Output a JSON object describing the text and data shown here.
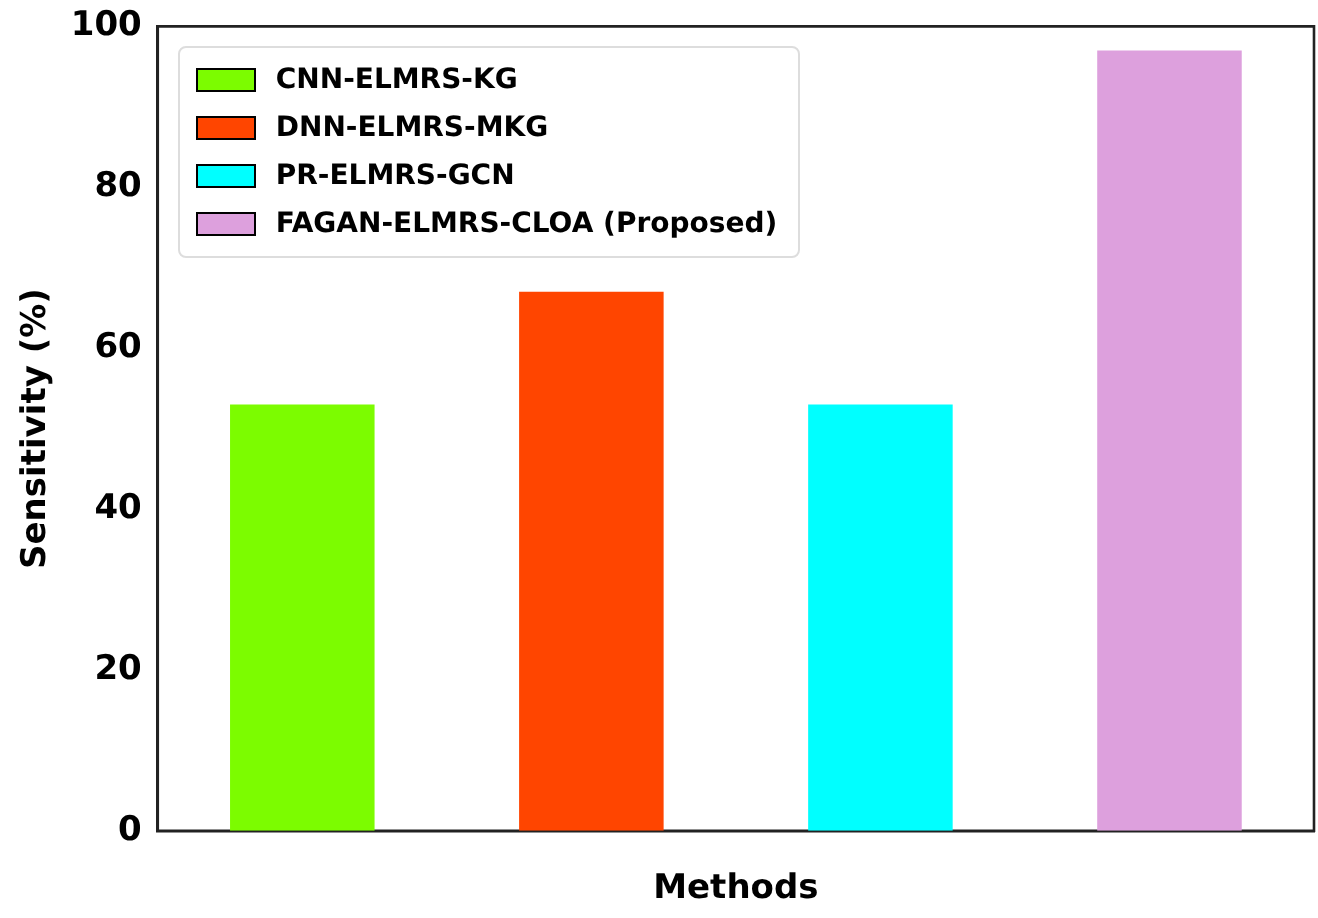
{
  "chart_data": {
    "type": "bar",
    "xlabel": "Methods",
    "ylabel": "Sensitivity (%)",
    "categories": [
      null,
      null,
      null,
      null
    ],
    "series": [
      {
        "name": "CNN-ELMRS-KG",
        "color": "#7cfc00",
        "values": [
          53,
          null,
          null,
          null
        ]
      },
      {
        "name": "DNN-ELMRS-MKG",
        "color": "#ff4500",
        "values": [
          null,
          67,
          null,
          null
        ]
      },
      {
        "name": "PR-ELMRS-GCN",
        "color": "#00ffff",
        "values": [
          null,
          null,
          53,
          null
        ]
      },
      {
        "name": "FAGAN-ELMRS-CLOA (Proposed)",
        "color": "#dda0dd",
        "values": [
          null,
          null,
          null,
          97
        ]
      }
    ],
    "ylim": [
      0,
      100
    ],
    "yticks": [
      0,
      20,
      40,
      60,
      80,
      100
    ],
    "grid": false,
    "legend": "top left"
  }
}
